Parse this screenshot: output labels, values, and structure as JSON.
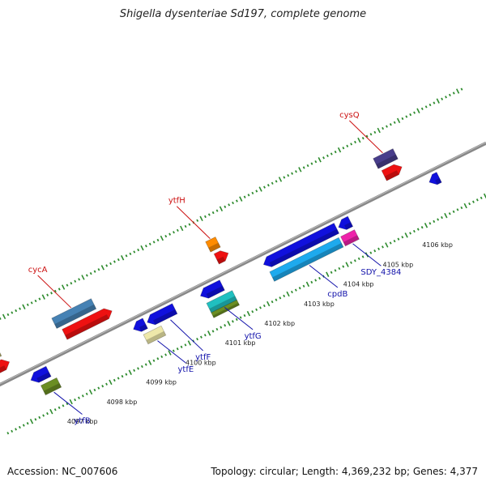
{
  "title": "Shigella dysenteriae Sd197, complete genome",
  "footer": {
    "accession": "Accession: NC_007606",
    "summary": "Topology: circular; Length: 4,369,232 bp; Genes: 4,377"
  },
  "colors": {
    "backbone": "#888888",
    "tick": "#2e8b2e",
    "top_label": "#cc1111",
    "bottom_label": "#1111aa",
    "blue": "#1010dd",
    "red": "#ee1111"
  },
  "scale": {
    "unit": "kbp",
    "ticks": [
      {
        "value": 4097,
        "label": "4097 kbp"
      },
      {
        "value": 4098,
        "label": "4098 kbp"
      },
      {
        "value": 4099,
        "label": "4099 kbp"
      },
      {
        "value": 4100,
        "label": "4100 kbp"
      },
      {
        "value": 4101,
        "label": "4101 kbp"
      },
      {
        "value": 4102,
        "label": "4102 kbp"
      },
      {
        "value": 4103,
        "label": "4103 kbp"
      },
      {
        "value": 4104,
        "label": "4104 kbp"
      },
      {
        "value": 4105,
        "label": "4105 kbp"
      },
      {
        "value": 4106,
        "label": "4106 kbp"
      }
    ]
  },
  "features": {
    "forward_outer": [
      {
        "start": 4096.1,
        "end": 4096.5,
        "color": "#bdb76b",
        "label": "fklB"
      },
      {
        "start": 4097.9,
        "end": 4098.9,
        "color": "#4682b4",
        "label": "cycA"
      },
      {
        "start": 4101.8,
        "end": 4102.05,
        "color": "#ff8c00",
        "label": "ytfH"
      },
      {
        "start": 4106.05,
        "end": 4106.55,
        "color": "#483d8b",
        "label": "cysQ"
      }
    ],
    "forward_inner": [
      {
        "start": 4096.2,
        "end": 4096.6,
        "color": "#ee1111"
      },
      {
        "start": 4098.0,
        "end": 4099.2,
        "color": "#ee1111"
      },
      {
        "start": 4101.85,
        "end": 4102.15,
        "color": "#ee1111"
      },
      {
        "start": 4106.1,
        "end": 4106.55,
        "color": "#ee1111"
      }
    ],
    "backbone_blue": [
      {
        "start": 4099.45,
        "end": 4099.75,
        "dir": "rev"
      },
      {
        "start": 4099.8,
        "end": 4100.5,
        "dir": "rev"
      },
      {
        "start": 4101.15,
        "end": 4101.7,
        "dir": "rev"
      },
      {
        "start": 4102.75,
        "end": 4104.6,
        "dir": "rev"
      },
      {
        "start": 4104.65,
        "end": 4104.95,
        "dir": "rev"
      },
      {
        "start": 4106.95,
        "end": 4107.2,
        "dir": "rev"
      },
      {
        "start": 4096.85,
        "end": 4097.3,
        "dir": "rev"
      }
    ],
    "reverse_inner": [
      {
        "start": 4097.0,
        "end": 4097.4,
        "color": "#6b8e23",
        "label": "ytfB"
      },
      {
        "start": 4099.6,
        "end": 4100.05,
        "color": "#eee8aa",
        "label": "ytfE"
      },
      {
        "start": 4101.2,
        "end": 4101.85,
        "color": "#20c0c0",
        "label": "ytfG"
      },
      {
        "start": 4102.8,
        "end": 4104.55,
        "color": "#1eaaee",
        "label": "cpdB"
      },
      {
        "start": 4104.6,
        "end": 4104.95,
        "color": "#ee22aa",
        "label": "SDY_4384"
      }
    ],
    "reverse_extra": [
      {
        "start": 4101.2,
        "end": 4101.85,
        "color": "#6b8e23"
      }
    ],
    "unlabeled_bottom": [
      {
        "label": "ytfF"
      }
    ]
  }
}
